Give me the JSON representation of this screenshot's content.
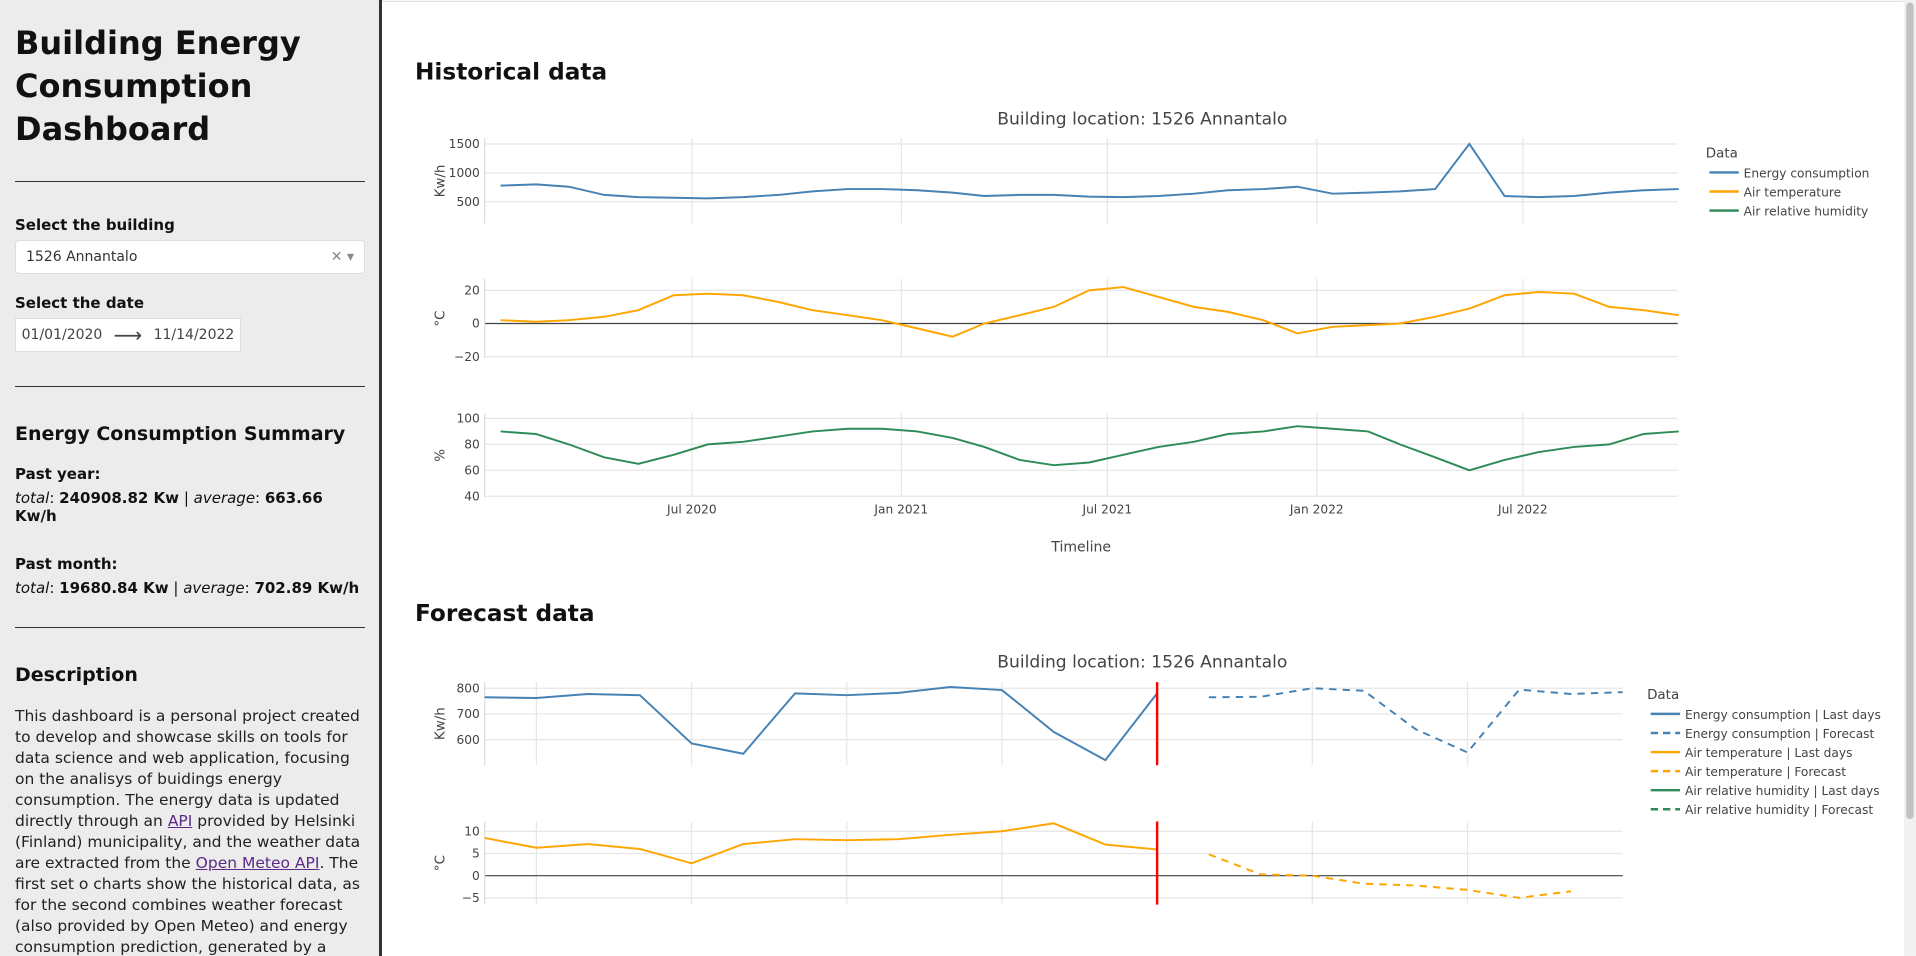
{
  "sidebar": {
    "title": "Building Energy Consumption Dashboard",
    "building_label": "Select the building",
    "building_value": "1526 Annantalo",
    "date_label": "Select the date",
    "date_start": "01/01/2020",
    "date_end": "11/14/2022",
    "summary_title": "Energy Consumption Summary",
    "past_year_label": "Past year:",
    "past_year_line": [
      "total",
      ": ",
      "240908.82 Kw",
      " | ",
      "average",
      ": ",
      "663.66 Kw/h"
    ],
    "past_month_label": "Past month:",
    "past_month_line": [
      "total",
      ": ",
      "19680.84 Kw",
      " | ",
      "average",
      ": ",
      "702.89 Kw/h"
    ],
    "description_title": "Description",
    "description": [
      "This dashboard is a personal project created to develop and showcase skills on tools for data science and web application, focusing on the analisys of buidings energy consumption. The energy data is updated directly through an ",
      "API",
      " provided by Helsinki (Finland) municipality, and the weather data are extracted from the ",
      "Open Meteo API",
      ". The first set o charts show the historical data, as for the second combines weather forecast (also provided by Open Meteo) and energy consumption prediction, generated by a Machine Learning model. More details about this project implementation can be seen"
    ]
  },
  "historical": {
    "heading": "Historical data",
    "title": "Building location: 1526 Annantalo",
    "x_label": "Timeline",
    "legend": {
      "title": "Data",
      "items": [
        {
          "name": "Energy consumption",
          "color": "#4682b4",
          "dash": false
        },
        {
          "name": "Air temperature",
          "color": "#ffa500",
          "dash": false
        },
        {
          "name": "Air relative humidity",
          "color": "#2e8b57",
          "dash": false
        }
      ]
    }
  },
  "forecast": {
    "heading": "Forecast data",
    "title": "Building location: 1526 Annantalo",
    "legend": {
      "title": "Data",
      "items": [
        {
          "name": "Energy consumption | Last days",
          "color": "#4682b4",
          "dash": false
        },
        {
          "name": "Energy consumption | Forecast",
          "color": "#4682b4",
          "dash": true
        },
        {
          "name": "Air temperature | Last days",
          "color": "#ffa500",
          "dash": false
        },
        {
          "name": "Air temperature | Forecast",
          "color": "#ffa500",
          "dash": true
        },
        {
          "name": "Air relative humidity | Last days",
          "color": "#2e8b57",
          "dash": false
        },
        {
          "name": "Air relative humidity | Forecast",
          "color": "#2e8b57",
          "dash": true
        }
      ]
    }
  },
  "chart_data": [
    {
      "type": "line",
      "y_label": "Kw/h",
      "ylim": [
        120,
        1600
      ],
      "yticks": [
        500,
        1000,
        1500
      ],
      "xlim": [
        "2020-01-01",
        "2022-11-14"
      ],
      "x": [
        "2020-01",
        "2020-02",
        "2020-03",
        "2020-04",
        "2020-05",
        "2020-06",
        "2020-07",
        "2020-08",
        "2020-09",
        "2020-10",
        "2020-11",
        "2020-12",
        "2021-01",
        "2021-02",
        "2021-03",
        "2021-04",
        "2021-05",
        "2021-06",
        "2021-07",
        "2021-08",
        "2021-09",
        "2021-10",
        "2021-11",
        "2021-12",
        "2022-01",
        "2022-02",
        "2022-03",
        "2022-04",
        "2022-05",
        "2022-06",
        "2022-07",
        "2022-08",
        "2022-09",
        "2022-10",
        "2022-11"
      ],
      "series": [
        {
          "color": "#4682b4",
          "dash": false,
          "values": [
            780,
            800,
            760,
            620,
            580,
            570,
            560,
            580,
            620,
            680,
            720,
            720,
            700,
            660,
            600,
            620,
            620,
            590,
            580,
            600,
            640,
            700,
            720,
            760,
            640,
            660,
            680,
            720,
            1500,
            600,
            580,
            600,
            660,
            700,
            720
          ]
        }
      ]
    },
    {
      "type": "line",
      "y_label": "°C",
      "ylim": [
        -21,
        27
      ],
      "yticks": [
        {
          "value": -20,
          "label": "−20"
        },
        0,
        20
      ],
      "zeroline": true,
      "xlim": [
        "2020-01-01",
        "2022-11-14"
      ],
      "x": [
        "2020-01",
        "2020-02",
        "2020-03",
        "2020-04",
        "2020-05",
        "2020-06",
        "2020-07",
        "2020-08",
        "2020-09",
        "2020-10",
        "2020-11",
        "2020-12",
        "2021-01",
        "2021-02",
        "2021-03",
        "2021-04",
        "2021-05",
        "2021-06",
        "2021-07",
        "2021-08",
        "2021-09",
        "2021-10",
        "2021-11",
        "2021-12",
        "2022-01",
        "2022-02",
        "2022-03",
        "2022-04",
        "2022-05",
        "2022-06",
        "2022-07",
        "2022-08",
        "2022-09",
        "2022-10",
        "2022-11"
      ],
      "series": [
        {
          "color": "#ffa500",
          "dash": false,
          "values": [
            2,
            1,
            2,
            4,
            8,
            17,
            18,
            17,
            13,
            8,
            5,
            2,
            -3,
            -8,
            0,
            5,
            10,
            20,
            22,
            16,
            10,
            7,
            2,
            -6,
            -2,
            -1,
            0,
            4,
            9,
            17,
            19,
            18,
            10,
            8,
            5
          ]
        }
      ]
    },
    {
      "type": "line",
      "y_label": "%",
      "ylim": [
        39,
        104
      ],
      "yticks": [
        40,
        60,
        80,
        100
      ],
      "xlim": [
        "2020-01-01",
        "2022-11-14"
      ],
      "xticks": [
        {
          "value": "2020-07-01",
          "label": "Jul 2020"
        },
        {
          "value": "2021-01-01",
          "label": "Jan 2021"
        },
        {
          "value": "2021-07-01",
          "label": "Jul 2021"
        },
        {
          "value": "2022-01-01",
          "label": "Jan 2022"
        },
        {
          "value": "2022-07-01",
          "label": "Jul 2022"
        }
      ],
      "x": [
        "2020-01",
        "2020-02",
        "2020-03",
        "2020-04",
        "2020-05",
        "2020-06",
        "2020-07",
        "2020-08",
        "2020-09",
        "2020-10",
        "2020-11",
        "2020-12",
        "2021-01",
        "2021-02",
        "2021-03",
        "2021-04",
        "2021-05",
        "2021-06",
        "2021-07",
        "2021-08",
        "2021-09",
        "2021-10",
        "2021-11",
        "2021-12",
        "2022-01",
        "2022-02",
        "2022-03",
        "2022-04",
        "2022-05",
        "2022-06",
        "2022-07",
        "2022-08",
        "2022-09",
        "2022-10",
        "2022-11"
      ],
      "series": [
        {
          "color": "#2e8b57",
          "dash": false,
          "values": [
            90,
            88,
            80,
            70,
            65,
            72,
            80,
            82,
            86,
            90,
            92,
            92,
            90,
            85,
            78,
            68,
            64,
            66,
            72,
            78,
            82,
            88,
            90,
            94,
            92,
            90,
            80,
            70,
            60,
            68,
            74,
            78,
            80,
            88,
            90
          ]
        }
      ]
    },
    {
      "type": "line",
      "y_label": "Kw/h",
      "ylim": [
        500,
        824
      ],
      "yticks": [
        600,
        700,
        800
      ],
      "xlim": [
        0,
        22
      ],
      "xgrid": [
        1,
        4,
        7,
        10,
        13,
        16,
        19
      ],
      "marker_x": 13,
      "marker_color": "#ff0000",
      "series": [
        {
          "color": "#4682b4",
          "dash": false,
          "x": [
            0,
            1,
            2,
            3,
            4,
            5,
            6,
            7,
            8,
            9,
            10,
            11,
            12,
            13
          ],
          "values": [
            765,
            762,
            778,
            773,
            585,
            545,
            780,
            773,
            782,
            805,
            793,
            630,
            520,
            780
          ]
        },
        {
          "color": "#4682b4",
          "dash": true,
          "x": [
            14,
            15,
            16,
            17,
            18,
            19,
            20,
            21,
            22
          ],
          "values": [
            765,
            767,
            800,
            790,
            640,
            550,
            795,
            778,
            785
          ]
        }
      ]
    },
    {
      "type": "line",
      "y_label": "°C",
      "ylim": [
        -6.5,
        12.2
      ],
      "yticks": [
        {
          "value": -5,
          "label": "−5"
        },
        0,
        5,
        10
      ],
      "zeroline": true,
      "xlim": [
        0,
        22
      ],
      "xgrid": [
        1,
        4,
        7,
        10,
        13,
        16,
        19
      ],
      "marker_x": 13,
      "marker_color": "#ff0000",
      "series": [
        {
          "color": "#ffa500",
          "dash": false,
          "x": [
            0,
            1,
            2,
            3,
            4,
            5,
            6,
            7,
            8,
            9,
            10,
            11,
            12,
            13
          ],
          "values": [
            8.5,
            6.3,
            7.1,
            6.0,
            2.8,
            7.1,
            8.2,
            8.0,
            8.2,
            9.2,
            10.0,
            11.8,
            7.0,
            5.9
          ]
        },
        {
          "color": "#ffa500",
          "dash": true,
          "x": [
            14,
            15,
            16,
            17,
            18,
            19,
            20,
            21
          ],
          "values": [
            4.8,
            0.3,
            0,
            -1.8,
            -2.2,
            -3.2,
            -5.0,
            -3.5
          ]
        }
      ]
    }
  ]
}
